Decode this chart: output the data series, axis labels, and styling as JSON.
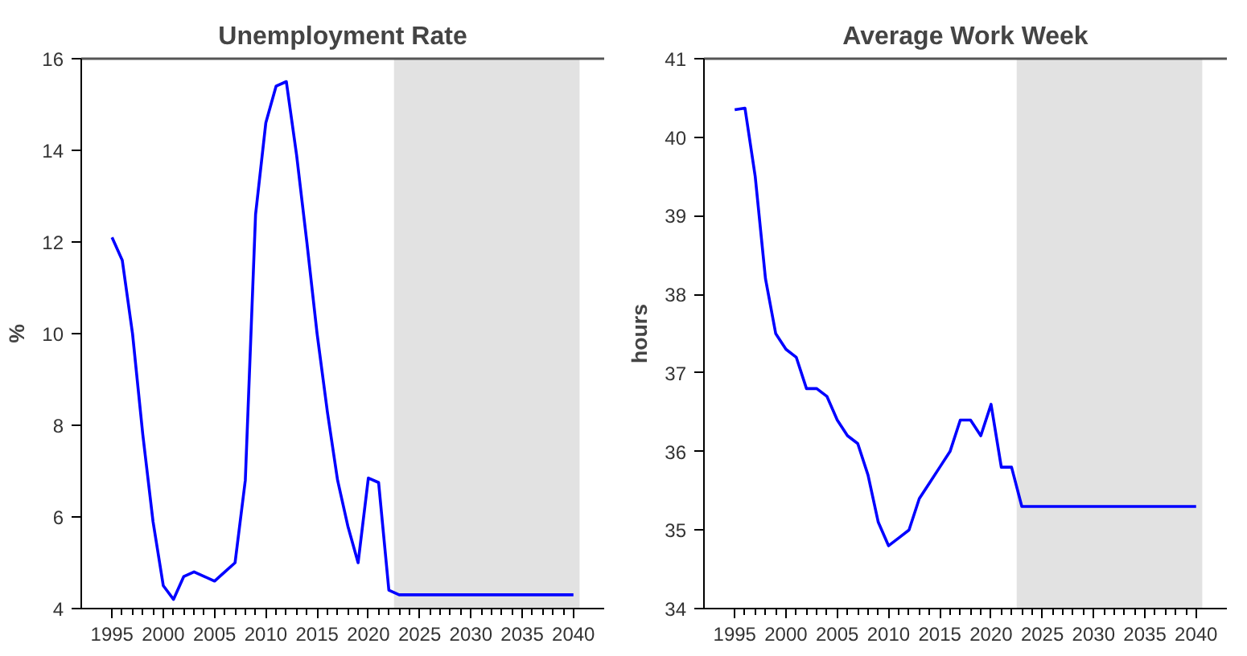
{
  "chart_data": [
    {
      "type": "line",
      "title": "Unemployment Rate",
      "ylabel": "%",
      "x": [
        1995,
        1996,
        1997,
        1998,
        1999,
        2000,
        2001,
        2002,
        2003,
        2004,
        2005,
        2006,
        2007,
        2008,
        2009,
        2010,
        2011,
        2012,
        2013,
        2014,
        2015,
        2016,
        2017,
        2018,
        2019,
        2020,
        2021,
        2022,
        2023,
        2040
      ],
      "series": [
        {
          "color": "#0000ff",
          "values": [
            12.1,
            11.6,
            10.0,
            7.8,
            5.9,
            4.5,
            4.2,
            4.7,
            4.8,
            4.7,
            4.6,
            4.8,
            5.0,
            6.8,
            12.6,
            14.6,
            15.4,
            15.5,
            13.9,
            12.0,
            10.0,
            8.3,
            6.8,
            5.8,
            5.0,
            6.85,
            6.75,
            4.4,
            4.3,
            4.3
          ]
        }
      ],
      "xlim": [
        1992,
        2043
      ],
      "ylim": [
        4,
        16
      ],
      "xticks": [
        1995,
        {
          "value": 1996,
          "label": null
        },
        {
          "value": 1997,
          "label": null
        },
        {
          "value": 1998,
          "label": null
        },
        {
          "value": 1999,
          "label": null
        },
        2000,
        {
          "value": 2001,
          "label": null
        },
        {
          "value": 2002,
          "label": null
        },
        {
          "value": 2003,
          "label": null
        },
        {
          "value": 2004,
          "label": null
        },
        2005,
        {
          "value": 2006,
          "label": null
        },
        {
          "value": 2007,
          "label": null
        },
        {
          "value": 2008,
          "label": null
        },
        {
          "value": 2009,
          "label": null
        },
        2010,
        {
          "value": 2011,
          "label": null
        },
        {
          "value": 2012,
          "label": null
        },
        {
          "value": 2013,
          "label": null
        },
        {
          "value": 2014,
          "label": null
        },
        2015,
        {
          "value": 2016,
          "label": null
        },
        {
          "value": 2017,
          "label": null
        },
        {
          "value": 2018,
          "label": null
        },
        {
          "value": 2019,
          "label": null
        },
        2020,
        {
          "value": 2021,
          "label": null
        },
        {
          "value": 2022,
          "label": null
        },
        {
          "value": 2023,
          "label": null
        },
        {
          "value": 2024,
          "label": null
        },
        2025,
        {
          "value": 2026,
          "label": null
        },
        {
          "value": 2027,
          "label": null
        },
        {
          "value": 2028,
          "label": null
        },
        {
          "value": 2029,
          "label": null
        },
        2030,
        {
          "value": 2031,
          "label": null
        },
        {
          "value": 2032,
          "label": null
        },
        {
          "value": 2033,
          "label": null
        },
        {
          "value": 2034,
          "label": null
        },
        2035,
        {
          "value": 2036,
          "label": null
        },
        {
          "value": 2037,
          "label": null
        },
        {
          "value": 2038,
          "label": null
        },
        {
          "value": 2039,
          "label": null
        },
        2040
      ],
      "yticks": [
        4,
        6,
        8,
        10,
        12,
        14,
        16
      ],
      "bands": [
        {
          "axis": "x",
          "from": 2022.5,
          "to": 2040.6,
          "color": "#e2e2e2"
        }
      ],
      "grid": false
    },
    {
      "type": "line",
      "title": "Average Work Week",
      "ylabel": "hours",
      "x": [
        1995,
        1996,
        1997,
        1998,
        1999,
        2000,
        2001,
        2002,
        2003,
        2004,
        2005,
        2006,
        2007,
        2008,
        2009,
        2010,
        2011,
        2012,
        2013,
        2014,
        2015,
        2016,
        2017,
        2018,
        2019,
        2020,
        2021,
        2022,
        2023,
        2040
      ],
      "series": [
        {
          "color": "#0000ff",
          "values": [
            40.35,
            40.37,
            39.5,
            38.2,
            37.5,
            37.3,
            37.2,
            36.8,
            36.8,
            36.7,
            36.4,
            36.2,
            36.1,
            35.7,
            35.1,
            34.8,
            34.9,
            35.0,
            35.4,
            35.6,
            35.8,
            36.0,
            36.4,
            36.4,
            36.2,
            36.6,
            35.8,
            35.8,
            35.3,
            35.3
          ]
        }
      ],
      "xlim": [
        1992,
        2043
      ],
      "ylim": [
        34,
        41
      ],
      "xticks": [
        1995,
        {
          "value": 1996,
          "label": null
        },
        {
          "value": 1997,
          "label": null
        },
        {
          "value": 1998,
          "label": null
        },
        {
          "value": 1999,
          "label": null
        },
        2000,
        {
          "value": 2001,
          "label": null
        },
        {
          "value": 2002,
          "label": null
        },
        {
          "value": 2003,
          "label": null
        },
        {
          "value": 2004,
          "label": null
        },
        2005,
        {
          "value": 2006,
          "label": null
        },
        {
          "value": 2007,
          "label": null
        },
        {
          "value": 2008,
          "label": null
        },
        {
          "value": 2009,
          "label": null
        },
        2010,
        {
          "value": 2011,
          "label": null
        },
        {
          "value": 2012,
          "label": null
        },
        {
          "value": 2013,
          "label": null
        },
        {
          "value": 2014,
          "label": null
        },
        2015,
        {
          "value": 2016,
          "label": null
        },
        {
          "value": 2017,
          "label": null
        },
        {
          "value": 2018,
          "label": null
        },
        {
          "value": 2019,
          "label": null
        },
        2020,
        {
          "value": 2021,
          "label": null
        },
        {
          "value": 2022,
          "label": null
        },
        {
          "value": 2023,
          "label": null
        },
        {
          "value": 2024,
          "label": null
        },
        2025,
        {
          "value": 2026,
          "label": null
        },
        {
          "value": 2027,
          "label": null
        },
        {
          "value": 2028,
          "label": null
        },
        {
          "value": 2029,
          "label": null
        },
        2030,
        {
          "value": 2031,
          "label": null
        },
        {
          "value": 2032,
          "label": null
        },
        {
          "value": 2033,
          "label": null
        },
        {
          "value": 2034,
          "label": null
        },
        2035,
        {
          "value": 2036,
          "label": null
        },
        {
          "value": 2037,
          "label": null
        },
        {
          "value": 2038,
          "label": null
        },
        {
          "value": 2039,
          "label": null
        },
        2040
      ],
      "yticks": [
        34,
        35,
        36,
        37,
        38,
        39,
        40,
        41
      ],
      "bands": [
        {
          "axis": "x",
          "from": 2022.5,
          "to": 2040.6,
          "color": "#e2e2e2"
        }
      ],
      "grid": false
    }
  ]
}
